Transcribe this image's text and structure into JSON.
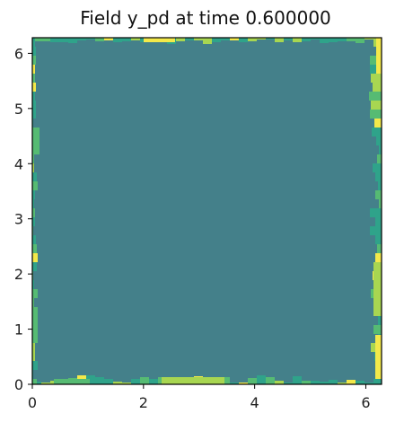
{
  "chart_data": {
    "type": "heatmap",
    "title": "Field y_pd at time 0.600000",
    "xlabel": "",
    "ylabel": "",
    "xlim": [
      0,
      6.2832
    ],
    "ylim": [
      0,
      6.2832
    ],
    "x_ticks": [
      "0",
      "2",
      "4",
      "6"
    ],
    "y_ticks": [
      "0",
      "1",
      "2",
      "3",
      "4",
      "5",
      "6"
    ],
    "x_tick_values": [
      0,
      2,
      4,
      6
    ],
    "y_tick_values": [
      0,
      1,
      2,
      3,
      4,
      5,
      6
    ],
    "grid": false,
    "colormap": "viridis",
    "colors": {
      "interior": "#44808a",
      "edge_mid": "#2fa38a",
      "edge_light": "#56bb73",
      "edge_bright": "#a8d651",
      "edge_peak": "#f3e94a",
      "frame": "#000000",
      "text": "#222222"
    },
    "field_description": {
      "interior_level": 0.15,
      "edge_level_range": [
        0.3,
        1.0
      ]
    }
  }
}
